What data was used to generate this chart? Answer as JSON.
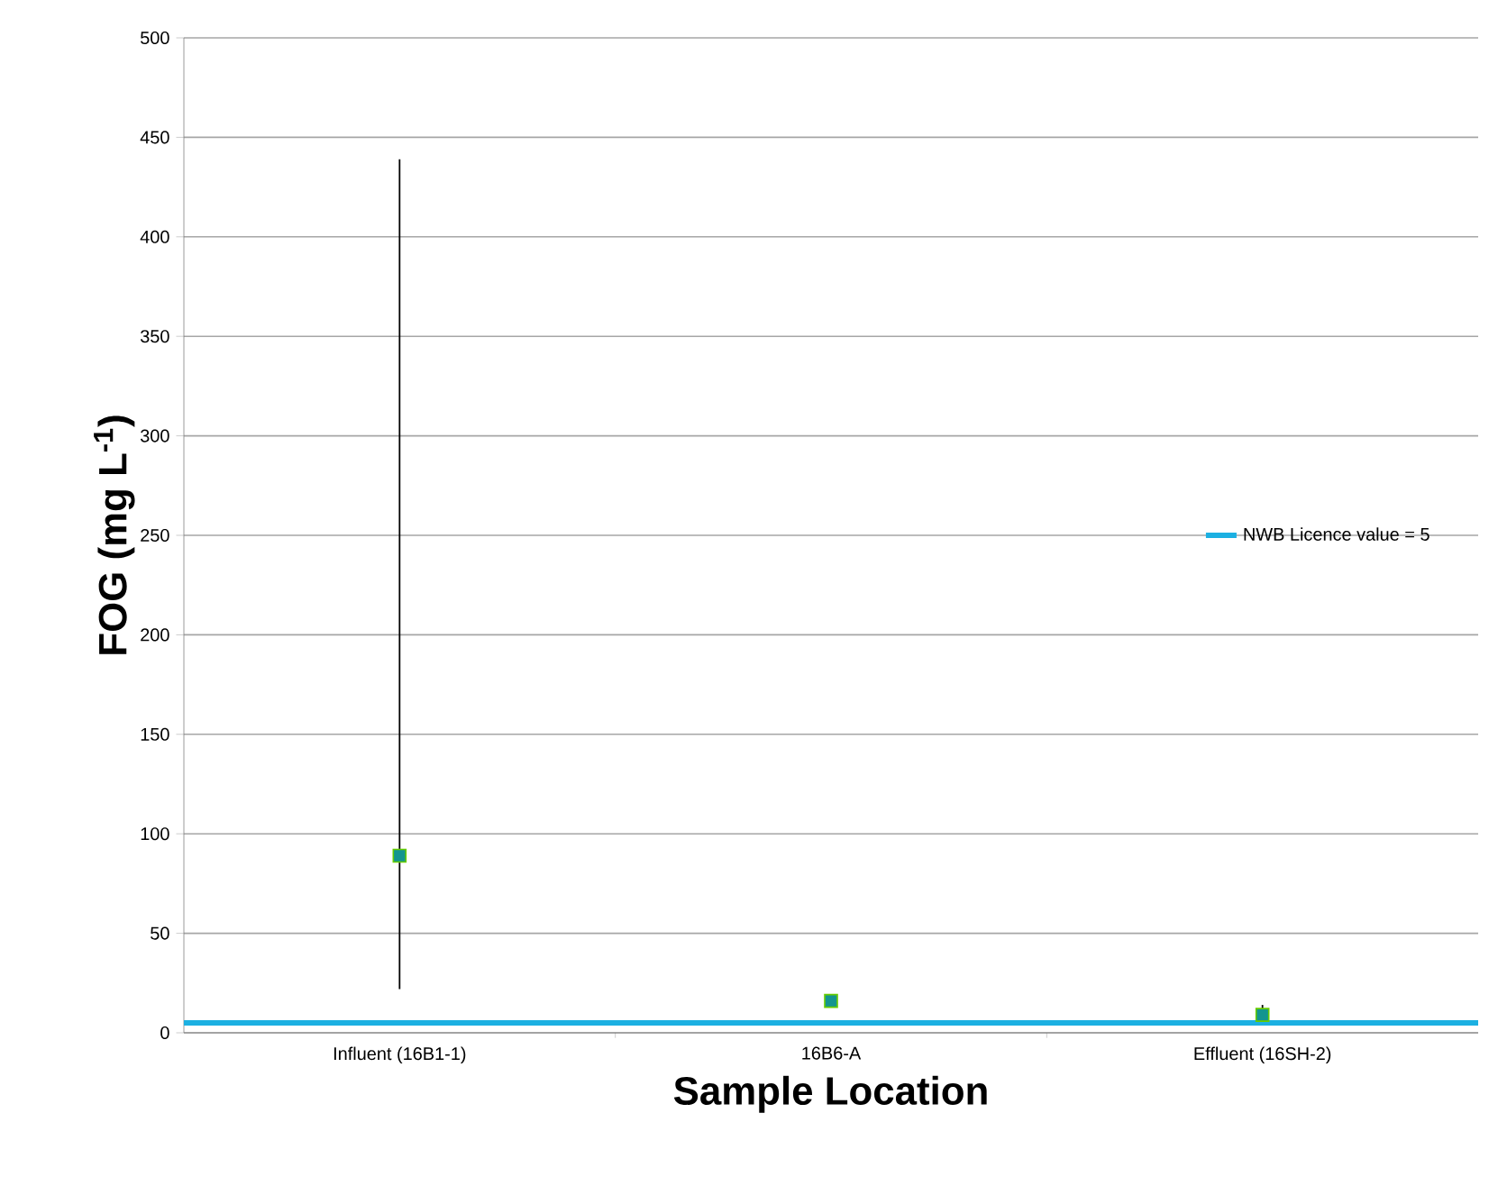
{
  "chart_data": {
    "type": "scatter",
    "xlabel": "Sample Location",
    "ylabel": "FOG (mg L$^{-1}$)",
    "categories": [
      "Influent (16B1-1)",
      "16B6-A",
      "Effluent (16SH-2)"
    ],
    "series": [
      {
        "color": "#13958f",
        "values": [
          89,
          16,
          9
        ],
        "errors": [
          [
            22,
            439
          ],
          null,
          [
            8,
            14
          ]
        ]
      }
    ],
    "marker": "square",
    "ylim": [
      0,
      500
    ],
    "yticks": [
      0,
      50,
      100,
      150,
      200,
      250,
      300,
      350,
      400,
      450,
      500
    ],
    "grid": "y",
    "legend": "right",
    "ref_lines": [
      {
        "axis": "y",
        "value": 5,
        "label": "NWB Licence value = 5",
        "color": "#1cb0e2"
      }
    ]
  }
}
